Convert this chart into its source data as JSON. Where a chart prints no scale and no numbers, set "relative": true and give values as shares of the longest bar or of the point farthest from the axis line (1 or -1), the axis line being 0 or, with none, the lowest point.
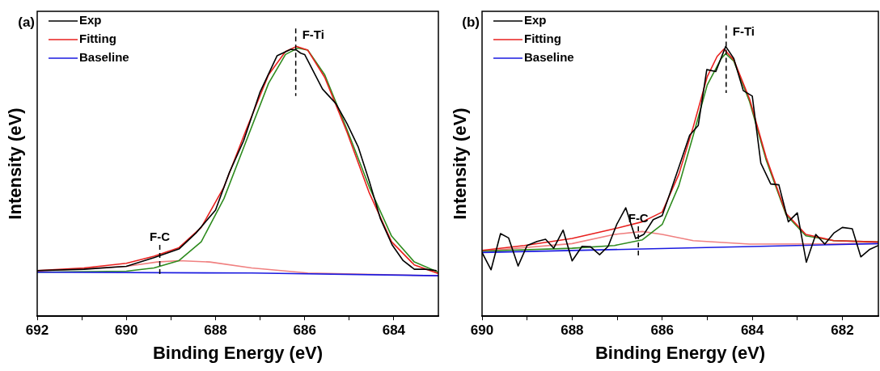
{
  "chart_data": [
    {
      "type": "line",
      "title": "(a)",
      "xlabel": "Binding Energy (eV)",
      "ylabel": "Intensity (eV)",
      "relative": true,
      "xlim": [
        692,
        683
      ],
      "xticks": [
        692,
        {
          "value": 691,
          "label": null
        },
        690,
        {
          "value": 689,
          "label": null
        },
        688,
        {
          "value": 687,
          "label": null
        },
        686,
        {
          "value": 685,
          "label": null
        },
        684
      ],
      "legend": "top left",
      "marker": "none",
      "line_style": "solid",
      "series": [
        {
          "name": "Exp",
          "color": "#000000",
          "x": [
            692,
            690.95,
            690.0,
            689.38,
            688.82,
            688.44,
            688.0,
            687.69,
            687.37,
            687.0,
            686.62,
            686.31,
            686.18,
            686.09,
            686.0,
            685.6,
            685.3,
            685.05,
            684.8,
            684.55,
            684.3,
            684.04,
            683.79,
            683.54,
            683.29,
            683.04
          ],
          "values": [
            0.169,
            0.174,
            0.185,
            0.217,
            0.249,
            0.308,
            0.393,
            0.532,
            0.65,
            0.831,
            0.965,
            0.989,
            0.986,
            0.975,
            0.97,
            0.842,
            0.788,
            0.714,
            0.628,
            0.5,
            0.361,
            0.265,
            0.206,
            0.174,
            0.174,
            0.169
          ]
        },
        {
          "name": "Fitting",
          "color": "#e8201e",
          "x": [
            692,
            690.95,
            690.0,
            689.38,
            688.82,
            688.32,
            687.81,
            687.31,
            686.81,
            686.43,
            686.18,
            685.93,
            685.55,
            685.05,
            684.55,
            684.05,
            683.54,
            683.0
          ],
          "values": [
            0.169,
            0.179,
            0.196,
            0.222,
            0.254,
            0.329,
            0.479,
            0.692,
            0.895,
            0.981,
            1.0,
            0.986,
            0.885,
            0.682,
            0.457,
            0.276,
            0.19,
            0.158
          ]
        },
        {
          "name": "Baseline",
          "color": "#1a1ae0",
          "x": [
            692,
            687.19,
            683.0
          ],
          "values": [
            0.163,
            0.16,
            0.15
          ]
        },
        {
          "color": "#2e8b1e",
          "x": [
            692,
            690.0,
            689.38,
            688.82,
            688.32,
            687.81,
            687.31,
            686.81,
            686.43,
            686.15,
            685.93,
            685.55,
            685.05,
            684.55,
            684.05,
            683.54,
            683.0
          ],
          "values": [
            0.163,
            0.167,
            0.179,
            0.206,
            0.276,
            0.436,
            0.65,
            0.863,
            0.97,
            0.994,
            0.986,
            0.895,
            0.692,
            0.479,
            0.297,
            0.201,
            0.163
          ]
        },
        {
          "color": "#f08080",
          "x": [
            692,
            690.0,
            689.31,
            688.82,
            688.13,
            687.19,
            685.93,
            683.0
          ],
          "values": [
            0.167,
            0.185,
            0.201,
            0.206,
            0.201,
            0.179,
            0.16,
            0.15
          ]
        }
      ],
      "ref_lines": [
        {
          "axis": "x",
          "value": 686.2,
          "label": "F-Ti",
          "color": "#000000",
          "line_style": "dashed"
        },
        {
          "axis": "x",
          "value": 689.25,
          "label": "F-C",
          "color": "#000000",
          "line_style": "dashed"
        }
      ]
    },
    {
      "type": "line",
      "title": "(b)",
      "xlabel": "Binding Energy (eV)",
      "ylabel": "Intensity (eV)",
      "relative": true,
      "xlim": [
        690,
        681.2
      ],
      "xticks": [
        690,
        {
          "value": 689,
          "label": null
        },
        688,
        {
          "value": 687,
          "label": null
        },
        686,
        {
          "value": 685,
          "label": null
        },
        684,
        {
          "value": 683,
          "label": null
        },
        682
      ],
      "legend": "top left",
      "marker": "none",
      "line_style": "solid",
      "series": [
        {
          "name": "Exp",
          "color": "#000000",
          "x": [
            690,
            689.8,
            689.59,
            689.41,
            689.2,
            689.0,
            688.78,
            688.59,
            688.41,
            688.2,
            688.0,
            687.78,
            687.59,
            687.39,
            687.2,
            687.01,
            686.81,
            686.59,
            686.41,
            686.2,
            686.0,
            685.81,
            685.59,
            685.39,
            685.2,
            685.01,
            684.81,
            684.59,
            684.41,
            684.2,
            684.0,
            683.81,
            683.59,
            683.41,
            683.2,
            683.0,
            682.8,
            682.59,
            682.39,
            682.19,
            682.0,
            681.78,
            681.59,
            681.39,
            681.2
          ],
          "values": [
            0.236,
            0.172,
            0.306,
            0.29,
            0.186,
            0.262,
            0.277,
            0.285,
            0.252,
            0.319,
            0.205,
            0.259,
            0.257,
            0.228,
            0.259,
            0.34,
            0.402,
            0.288,
            0.303,
            0.358,
            0.373,
            0.464,
            0.572,
            0.671,
            0.707,
            0.914,
            0.907,
            1.0,
            0.955,
            0.836,
            0.816,
            0.567,
            0.49,
            0.487,
            0.35,
            0.383,
            0.2,
            0.303,
            0.267,
            0.308,
            0.329,
            0.324,
            0.22,
            0.248,
            0.262
          ]
        },
        {
          "name": "Fitting",
          "color": "#e8201e",
          "x": [
            690,
            689.06,
            688.0,
            687.06,
            686.44,
            686.0,
            685.63,
            685.31,
            685.0,
            684.78,
            684.63,
            684.41,
            684.06,
            683.69,
            683.25,
            682.81,
            682.19,
            681.2
          ],
          "values": [
            0.244,
            0.262,
            0.288,
            0.324,
            0.35,
            0.386,
            0.526,
            0.702,
            0.888,
            0.963,
            0.99,
            0.95,
            0.805,
            0.588,
            0.381,
            0.303,
            0.28,
            0.275
          ]
        },
        {
          "name": "Baseline",
          "color": "#1a1ae0",
          "x": [
            690,
            681.2
          ],
          "values": [
            0.236,
            0.269
          ]
        },
        {
          "color": "#2e8b1e",
          "x": [
            690,
            688.0,
            687.06,
            686.44,
            686.0,
            685.63,
            685.31,
            685.0,
            684.69,
            684.59,
            684.41,
            684.06,
            683.69,
            683.25,
            682.81,
            682.19,
            681.2
          ],
          "values": [
            0.241,
            0.252,
            0.262,
            0.283,
            0.34,
            0.484,
            0.671,
            0.857,
            0.955,
            0.973,
            0.945,
            0.795,
            0.578,
            0.376,
            0.298,
            0.28,
            0.275
          ]
        },
        {
          "color": "#f08080",
          "x": [
            690,
            688.0,
            687.06,
            686.44,
            686.0,
            685.31,
            684.06,
            681.2
          ],
          "values": [
            0.241,
            0.269,
            0.303,
            0.314,
            0.303,
            0.28,
            0.267,
            0.269
          ]
        }
      ],
      "ref_lines": [
        {
          "axis": "x",
          "value": 684.58,
          "label": "F-Ti",
          "color": "#000000",
          "line_style": "dashed"
        },
        {
          "axis": "x",
          "value": 686.53,
          "label": "F-C",
          "color": "#000000",
          "line_style": "dashed"
        }
      ]
    }
  ]
}
